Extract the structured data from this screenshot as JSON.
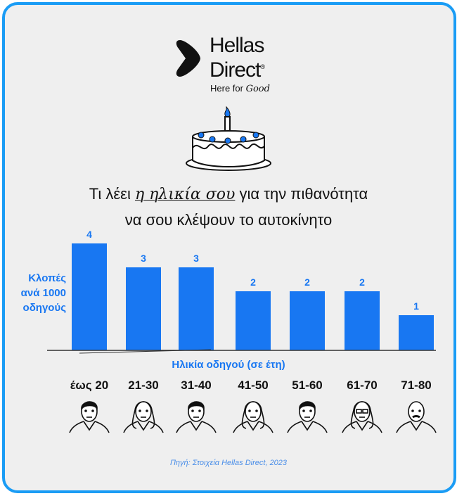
{
  "brand": {
    "name_line1": "Hellas",
    "name_line2": "Direct",
    "registered": "®",
    "tagline": "Here for",
    "tagline_script": "Good"
  },
  "title": {
    "part1": "Τι λέει",
    "highlight": "η ηλικία σου",
    "part2": "για την πιθανότητα",
    "line2": "να σου κλέψουν το αυτοκίνητο"
  },
  "colors": {
    "bar": "#1877f2",
    "border": "#1a9cf5",
    "background": "#efefef"
  },
  "chart_data": {
    "type": "bar",
    "title": "Τι λέει η ηλικία σου για την πιθανότητα να σου κλέψουν το αυτοκίνητο",
    "ylabel": "Κλοπές ανά 1000 οδηγούς",
    "xlabel": "Ηλικία οδηγού (σε έτη)",
    "categories": [
      "έως 20",
      "21-30",
      "31-40",
      "41-50",
      "51-60",
      "61-70",
      "71-80"
    ],
    "values": [
      4,
      3,
      3,
      2,
      2,
      2,
      1
    ],
    "data_labels": [
      "4",
      "3",
      "3",
      "2",
      "2",
      "2",
      "1"
    ],
    "ylim": [
      0,
      4
    ],
    "grid": false
  },
  "source": "Πηγή: Στοιχεία Hellas Direct, 2023"
}
